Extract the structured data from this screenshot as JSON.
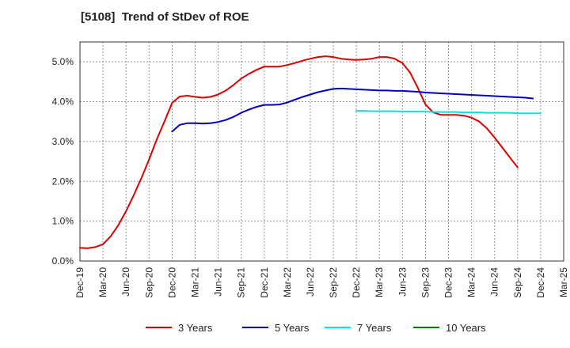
{
  "chart_data": {
    "type": "line",
    "title": "[5108]  Trend of StDev of ROE",
    "xlabel": "",
    "ylabel": "",
    "ylim": [
      0,
      5.5
    ],
    "yticks": [
      0,
      1,
      2,
      3,
      4,
      5
    ],
    "ytick_labels": [
      "0.0%",
      "1.0%",
      "2.0%",
      "3.0%",
      "4.0%",
      "5.0%"
    ],
    "x_tick_labels": [
      "Dec-19",
      "Mar-20",
      "Jun-20",
      "Sep-20",
      "Dec-20",
      "Mar-21",
      "Jun-21",
      "Sep-21",
      "Dec-21",
      "Mar-22",
      "Jun-22",
      "Sep-22",
      "Dec-22",
      "Mar-23",
      "Jun-23",
      "Sep-23",
      "Dec-23",
      "Mar-24",
      "Jun-24",
      "Sep-24",
      "Dec-24",
      "Mar-25"
    ],
    "grid": true,
    "legend_position": "bottom",
    "series": [
      {
        "name": "3 Years",
        "color": "#dd0000",
        "start": "Dec-19",
        "values": [
          0.33,
          0.32,
          0.35,
          0.42,
          0.62,
          0.9,
          1.25,
          1.65,
          2.08,
          2.55,
          3.05,
          3.5,
          3.97,
          4.13,
          4.15,
          4.12,
          4.1,
          4.12,
          4.18,
          4.28,
          4.42,
          4.58,
          4.7,
          4.8,
          4.88,
          4.88,
          4.88,
          4.92,
          4.97,
          5.03,
          5.08,
          5.12,
          5.14,
          5.12,
          5.08,
          5.06,
          5.05,
          5.06,
          5.08,
          5.12,
          5.12,
          5.08,
          4.97,
          4.73,
          4.35,
          3.93,
          3.73,
          3.67,
          3.67,
          3.67,
          3.65,
          3.6,
          3.5,
          3.33,
          3.1,
          2.85,
          2.6,
          2.35
        ]
      },
      {
        "name": "5 Years",
        "color": "#0000cc",
        "start": "Dec-20",
        "values": [
          3.25,
          3.42,
          3.46,
          3.46,
          3.45,
          3.46,
          3.49,
          3.54,
          3.62,
          3.72,
          3.8,
          3.87,
          3.92,
          3.92,
          3.93,
          3.98,
          4.05,
          4.12,
          4.18,
          4.24,
          4.28,
          4.32,
          4.33,
          4.32,
          4.31,
          4.3,
          4.29,
          4.28,
          4.28,
          4.27,
          4.27,
          4.26,
          4.25,
          4.23,
          4.22,
          4.21,
          4.2,
          4.19,
          4.18,
          4.17,
          4.16,
          4.15,
          4.14,
          4.13,
          4.12,
          4.11,
          4.1,
          4.08
        ]
      },
      {
        "name": "7 Years",
        "color": "#00e5e5",
        "start": "Dec-22",
        "values": [
          3.77,
          3.77,
          3.76,
          3.76,
          3.76,
          3.76,
          3.75,
          3.75,
          3.75,
          3.75,
          3.74,
          3.74,
          3.74,
          3.74,
          3.73,
          3.73,
          3.73,
          3.72,
          3.72,
          3.72,
          3.72,
          3.71,
          3.71,
          3.71,
          3.71
        ]
      },
      {
        "name": "10 Years",
        "color": "#008000",
        "start": "",
        "values": []
      }
    ]
  }
}
